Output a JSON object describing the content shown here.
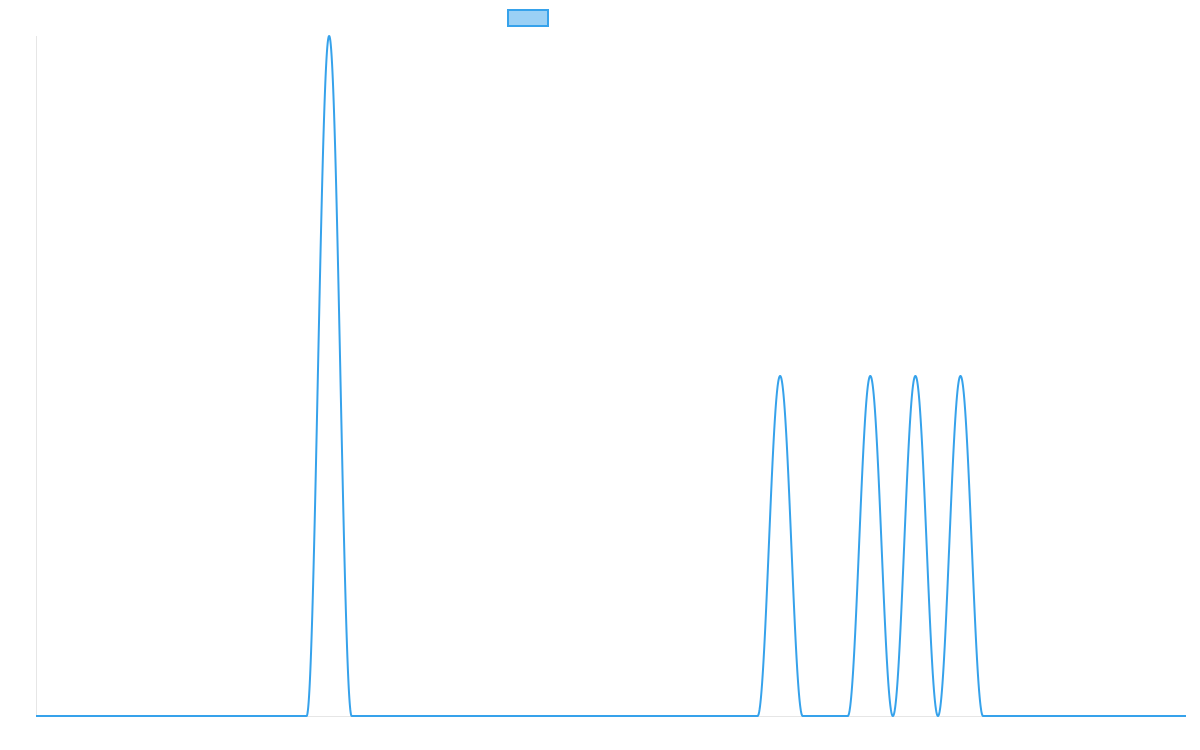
{
  "chart_data": {
    "type": "line",
    "title": "",
    "xlabel": "",
    "ylabel": "",
    "xlim": [
      0,
      255
    ],
    "ylim": [
      0,
      1.0
    ],
    "grid": false,
    "legend": {
      "placement": "top-center"
    },
    "series": [
      {
        "color": "#36a2eb",
        "fill": "#9ad0f5",
        "peaks": [
          {
            "center": 65,
            "half_width": 5,
            "height": 1.0
          },
          {
            "center": 165,
            "half_width": 5,
            "height": 0.5
          },
          {
            "center": 185,
            "half_width": 5,
            "height": 0.5
          },
          {
            "center": 195,
            "half_width": 5,
            "height": 0.5
          },
          {
            "center": 205,
            "half_width": 5,
            "height": 0.5
          }
        ]
      }
    ]
  }
}
